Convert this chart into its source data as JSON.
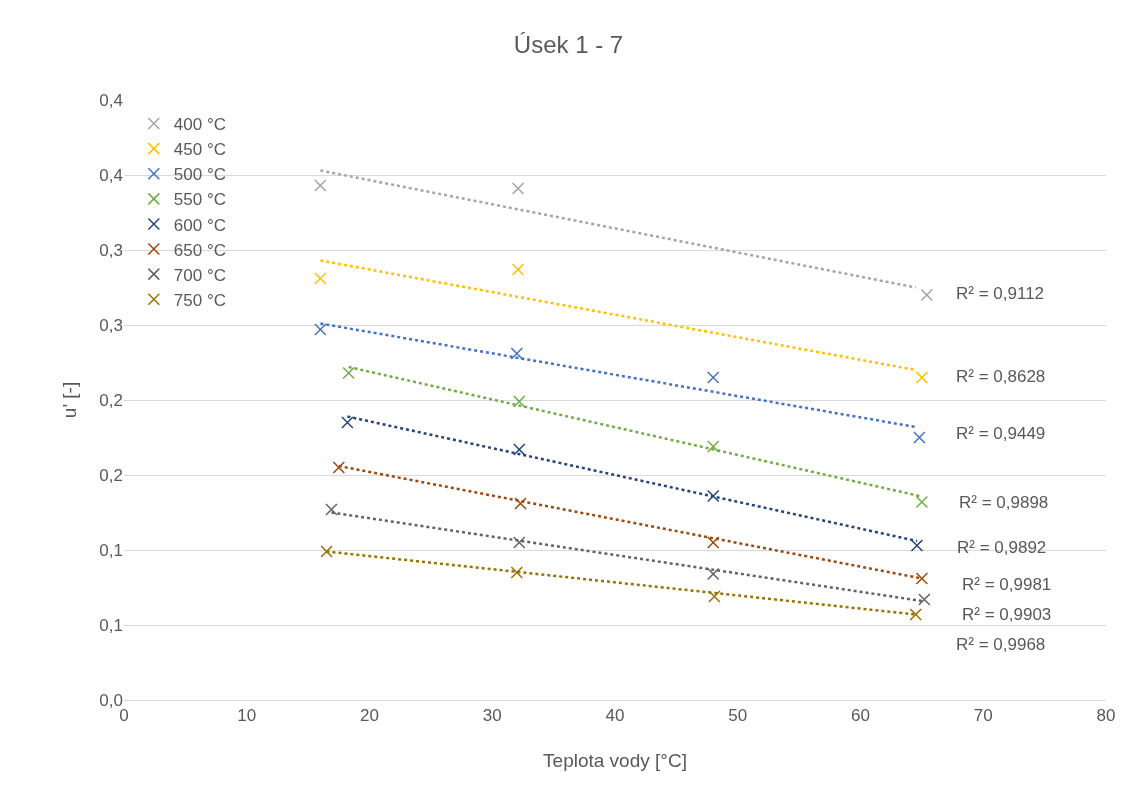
{
  "chart_data": {
    "type": "scatter",
    "title": "Úsek 1 - 7",
    "xlabel": "Teplota vody [°C]",
    "ylabel": "u' [-]",
    "marker": "cross",
    "grid": "y",
    "legend": "top left",
    "xlim": [
      0,
      80
    ],
    "xticks": [
      0,
      10,
      20,
      30,
      40,
      50,
      60,
      70,
      80
    ],
    "ylim": [
      0,
      0.4
    ],
    "yticks": [
      {
        "value": 0,
        "label": "0,0"
      },
      {
        "value": 0.05,
        "label": "0,1"
      },
      {
        "value": 0.1,
        "label": "0,1"
      },
      {
        "value": 0.15,
        "label": "0,2"
      },
      {
        "value": 0.2,
        "label": "0,2"
      },
      {
        "value": 0.25,
        "label": "0,3"
      },
      {
        "value": 0.3,
        "label": "0,3"
      },
      {
        "value": 0.35,
        "label": "0,4"
      },
      {
        "value": 0.4,
        "label": "0,4"
      }
    ],
    "series": [
      {
        "name": "400 °C",
        "color": "#a5a5a5",
        "x": [
          16,
          32.1,
          65.4
        ],
        "values": [
          0.343,
          0.341,
          0.27
        ]
      },
      {
        "name": "450 °C",
        "color": "#ffc000",
        "x": [
          16,
          32.1,
          65
        ],
        "values": [
          0.281,
          0.287,
          0.215
        ]
      },
      {
        "name": "500 °C",
        "color": "#4472c4",
        "x": [
          16,
          32,
          48,
          64.8
        ],
        "values": [
          0.247,
          0.231,
          0.215,
          0.175
        ]
      },
      {
        "name": "550 °C",
        "color": "#70ad47",
        "x": [
          18.3,
          32.2,
          48,
          65
        ],
        "values": [
          0.218,
          0.199,
          0.169,
          0.132
        ]
      },
      {
        "name": "600 °C",
        "color": "#264478",
        "x": [
          18.2,
          32.2,
          48,
          64.6
        ],
        "values": [
          0.185,
          0.167,
          0.136,
          0.103
        ]
      },
      {
        "name": "650 °C",
        "color": "#9e480e",
        "x": [
          17.5,
          32.3,
          48,
          65
        ],
        "values": [
          0.155,
          0.131,
          0.105,
          0.081
        ]
      },
      {
        "name": "700 °C",
        "color": "#636363",
        "x": [
          16.9,
          32.2,
          48,
          65.2
        ],
        "values": [
          0.127,
          0.105,
          0.084,
          0.067
        ]
      },
      {
        "name": "750 °C",
        "color": "#997300",
        "x": [
          16.5,
          32,
          48.1,
          64.5
        ],
        "values": [
          0.099,
          0.085,
          0.069,
          0.057
        ]
      },
      {
        "type": "line",
        "marker": "none",
        "line_style": "dotted",
        "color": "#a5a5a5",
        "x": [
          16,
          64.5
        ],
        "values": [
          0.353,
          0.275
        ]
      },
      {
        "type": "line",
        "marker": "none",
        "line_style": "dotted",
        "color": "#ffc000",
        "x": [
          16,
          64.5
        ],
        "values": [
          0.293,
          0.22
        ]
      },
      {
        "type": "line",
        "marker": "none",
        "line_style": "dotted",
        "color": "#4472c4",
        "x": [
          16,
          64.5
        ],
        "values": [
          0.251,
          0.182
        ]
      },
      {
        "type": "line",
        "marker": "none",
        "line_style": "dotted",
        "color": "#70ad47",
        "x": [
          18.3,
          64.8
        ],
        "values": [
          0.222,
          0.136
        ]
      },
      {
        "type": "line",
        "marker": "none",
        "line_style": "dotted",
        "color": "#264478",
        "x": [
          18.2,
          64.6
        ],
        "values": [
          0.189,
          0.106
        ]
      },
      {
        "type": "line",
        "marker": "none",
        "line_style": "dotted",
        "color": "#9e480e",
        "x": [
          17.5,
          65
        ],
        "values": [
          0.156,
          0.081
        ]
      },
      {
        "type": "line",
        "marker": "none",
        "line_style": "dotted",
        "color": "#636363",
        "x": [
          16.9,
          65
        ],
        "values": [
          0.125,
          0.066
        ]
      },
      {
        "type": "line",
        "marker": "none",
        "line_style": "dotted",
        "color": "#997300",
        "x": [
          16.5,
          64.5
        ],
        "values": [
          0.099,
          0.057
        ]
      }
    ],
    "annotations": [
      "R² = 0,9112",
      "R² = 0,8628",
      "R² = 0,9449",
      "R² = 0,9898",
      "R² = 0,9892",
      "R² = 0,9981",
      "R² = 0,9903",
      "R² = 0,9968"
    ]
  }
}
